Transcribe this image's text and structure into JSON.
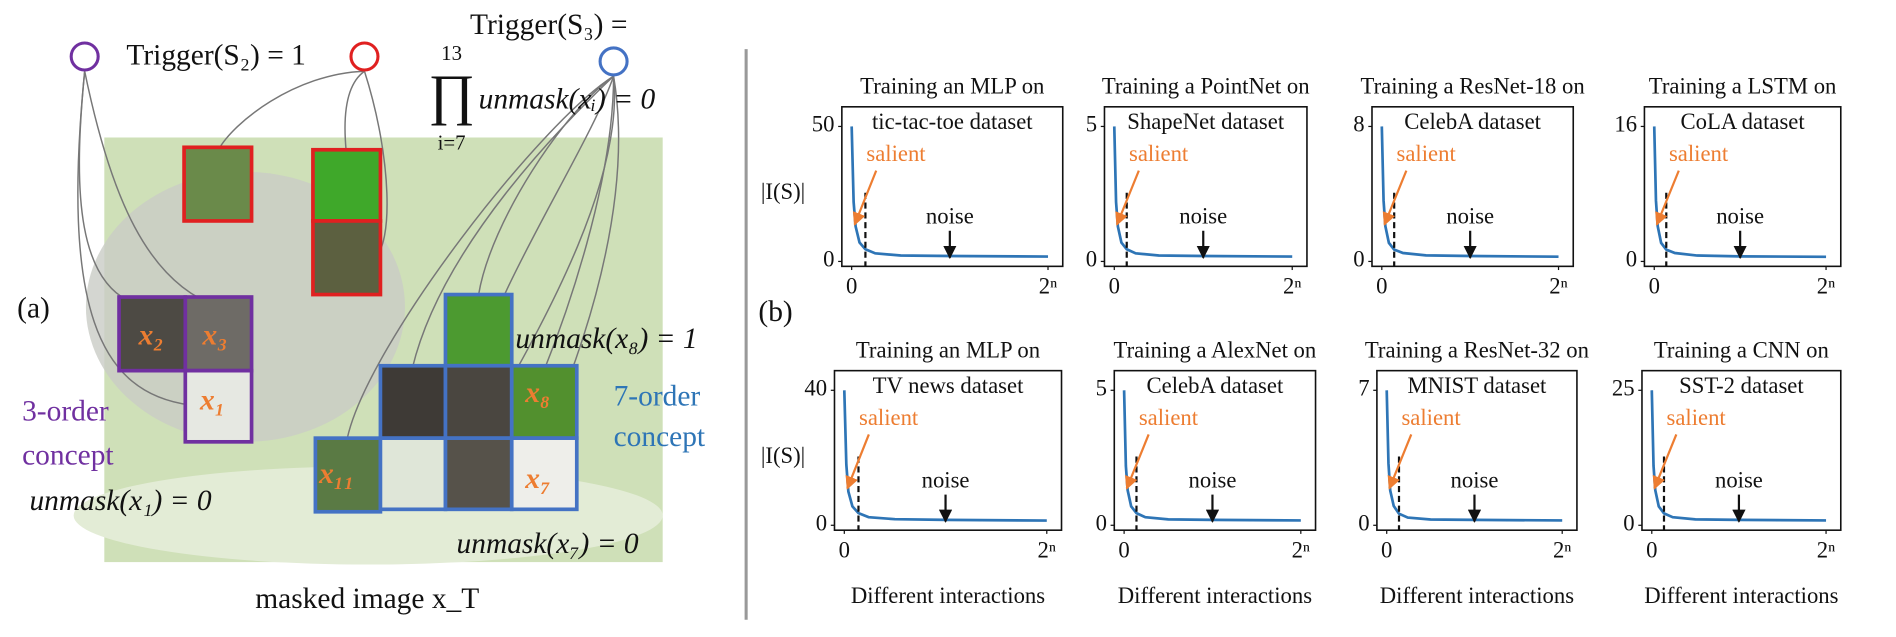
{
  "panel_a": {
    "label": "(a)",
    "trigger_s2": "Trigger(S₂) = 1",
    "trigger_s3": "Trigger(S₃) =",
    "product": {
      "upper": "13",
      "symbol": "∏",
      "lower": "i=7",
      "expr": "unmask(xᵢ) = 0"
    },
    "patch_labels": [
      "x₂",
      "x₃",
      "x₁",
      "x₈",
      "x₇",
      "x₁₁"
    ],
    "unmask_x8": "unmask(x₈) = 1",
    "unmask_x1": "unmask(x₁) = 0",
    "unmask_x7": "unmask(x₇) = 0",
    "concept_7": [
      "7-order",
      "concept"
    ],
    "concept_3": [
      "3-order",
      "concept"
    ],
    "caption": "masked image x_T"
  },
  "panel_b": {
    "label": "(b)"
  },
  "chart_data": [
    {
      "type": "line",
      "title": "Training an MLP on",
      "subtitle": "tic-tac-toe dataset",
      "ylabel": "|I(S)|",
      "annotations": [
        "salient",
        "noise"
      ],
      "color": "#2e75b6",
      "x": [
        0,
        0.01,
        0.02,
        0.04,
        0.07,
        0.12,
        0.25,
        0.5,
        1
      ],
      "values": [
        50,
        22,
        13,
        7,
        4.5,
        3,
        2.2,
        2,
        1.8
      ],
      "xlim": [
        0,
        1
      ],
      "xticks": [
        0,
        {
          "value": 1,
          "label": "2ⁿ"
        }
      ],
      "ylim": [
        0,
        55
      ],
      "yticks": [
        0,
        50
      ]
    },
    {
      "type": "line",
      "title": "Training a PointNet on",
      "subtitle": "ShapeNet dataset",
      "annotations": [
        "salient",
        "noise"
      ],
      "color": "#2e75b6",
      "x": [
        0,
        0.01,
        0.02,
        0.04,
        0.07,
        0.12,
        0.25,
        0.5,
        1
      ],
      "values": [
        5,
        2.2,
        1.3,
        0.7,
        0.45,
        0.3,
        0.22,
        0.2,
        0.18
      ],
      "xlim": [
        0,
        1
      ],
      "xticks": [
        0,
        {
          "value": 1,
          "label": "2ⁿ"
        }
      ],
      "ylim": [
        0,
        5.5
      ],
      "yticks": [
        0,
        5
      ]
    },
    {
      "type": "line",
      "title": "Training a ResNet-18 on",
      "subtitle": "CelebA dataset",
      "annotations": [
        "salient",
        "noise"
      ],
      "color": "#2e75b6",
      "x": [
        0,
        0.01,
        0.02,
        0.04,
        0.07,
        0.12,
        0.25,
        0.5,
        1
      ],
      "values": [
        8,
        3.6,
        2.1,
        1.1,
        0.7,
        0.5,
        0.36,
        0.32,
        0.28
      ],
      "xlim": [
        0,
        1
      ],
      "xticks": [
        0,
        {
          "value": 1,
          "label": "2ⁿ"
        }
      ],
      "ylim": [
        0,
        8.8
      ],
      "yticks": [
        0,
        8
      ]
    },
    {
      "type": "line",
      "title": "Training a LSTM on",
      "subtitle": "CoLA dataset",
      "annotations": [
        "salient",
        "noise"
      ],
      "color": "#2e75b6",
      "x": [
        0,
        0.01,
        0.02,
        0.04,
        0.07,
        0.12,
        0.25,
        0.5,
        1
      ],
      "values": [
        16,
        7.2,
        4.2,
        2.2,
        1.4,
        1,
        0.7,
        0.6,
        0.55
      ],
      "xlim": [
        0,
        1
      ],
      "xticks": [
        0,
        {
          "value": 1,
          "label": "2ⁿ"
        }
      ],
      "ylim": [
        0,
        17.6
      ],
      "yticks": [
        0,
        16
      ]
    },
    {
      "type": "line",
      "title": "Training an MLP on",
      "subtitle": "TV news dataset",
      "ylabel": "|I(S)|",
      "xlabel": "Different interactions",
      "annotations": [
        "salient",
        "noise"
      ],
      "color": "#2e75b6",
      "x": [
        0,
        0.01,
        0.02,
        0.04,
        0.07,
        0.12,
        0.25,
        0.5,
        1
      ],
      "values": [
        40,
        18,
        10,
        5.6,
        3.6,
        2.4,
        1.8,
        1.6,
        1.4
      ],
      "xlim": [
        0,
        1
      ],
      "xticks": [
        0,
        {
          "value": 1,
          "label": "2ⁿ"
        }
      ],
      "ylim": [
        0,
        44
      ],
      "yticks": [
        0,
        40
      ]
    },
    {
      "type": "line",
      "title": "Training a AlexNet on",
      "subtitle": "CelebA dataset",
      "xlabel": "Different interactions",
      "annotations": [
        "salient",
        "noise"
      ],
      "color": "#2e75b6",
      "x": [
        0,
        0.01,
        0.02,
        0.04,
        0.07,
        0.12,
        0.25,
        0.5,
        1
      ],
      "values": [
        5,
        2.2,
        1.3,
        0.7,
        0.45,
        0.3,
        0.22,
        0.2,
        0.18
      ],
      "xlim": [
        0,
        1
      ],
      "xticks": [
        0,
        {
          "value": 1,
          "label": "2ⁿ"
        }
      ],
      "ylim": [
        0,
        5.5
      ],
      "yticks": [
        0,
        5
      ]
    },
    {
      "type": "line",
      "title": "Training a ResNet-32 on",
      "subtitle": "MNIST dataset",
      "xlabel": "Different interactions",
      "annotations": [
        "salient",
        "noise"
      ],
      "color": "#2e75b6",
      "x": [
        0,
        0.01,
        0.02,
        0.04,
        0.07,
        0.12,
        0.25,
        0.5,
        1
      ],
      "values": [
        7,
        3.2,
        1.8,
        1,
        0.6,
        0.4,
        0.3,
        0.28,
        0.25
      ],
      "xlim": [
        0,
        1
      ],
      "xticks": [
        0,
        {
          "value": 1,
          "label": "2ⁿ"
        }
      ],
      "ylim": [
        0,
        7.7
      ],
      "yticks": [
        0,
        7
      ]
    },
    {
      "type": "line",
      "title": "Training a CNN on",
      "subtitle": "SST-2 dataset",
      "xlabel": "Different interactions",
      "annotations": [
        "salient",
        "noise"
      ],
      "color": "#2e75b6",
      "x": [
        0,
        0.01,
        0.02,
        0.04,
        0.07,
        0.12,
        0.25,
        0.5,
        1
      ],
      "values": [
        25,
        11,
        6.5,
        3.5,
        2.2,
        1.5,
        1.1,
        1,
        0.9
      ],
      "xlim": [
        0,
        1
      ],
      "xticks": [
        0,
        {
          "value": 1,
          "label": "2ⁿ"
        }
      ],
      "ylim": [
        0,
        27.5
      ],
      "yticks": [
        0,
        25
      ]
    }
  ]
}
